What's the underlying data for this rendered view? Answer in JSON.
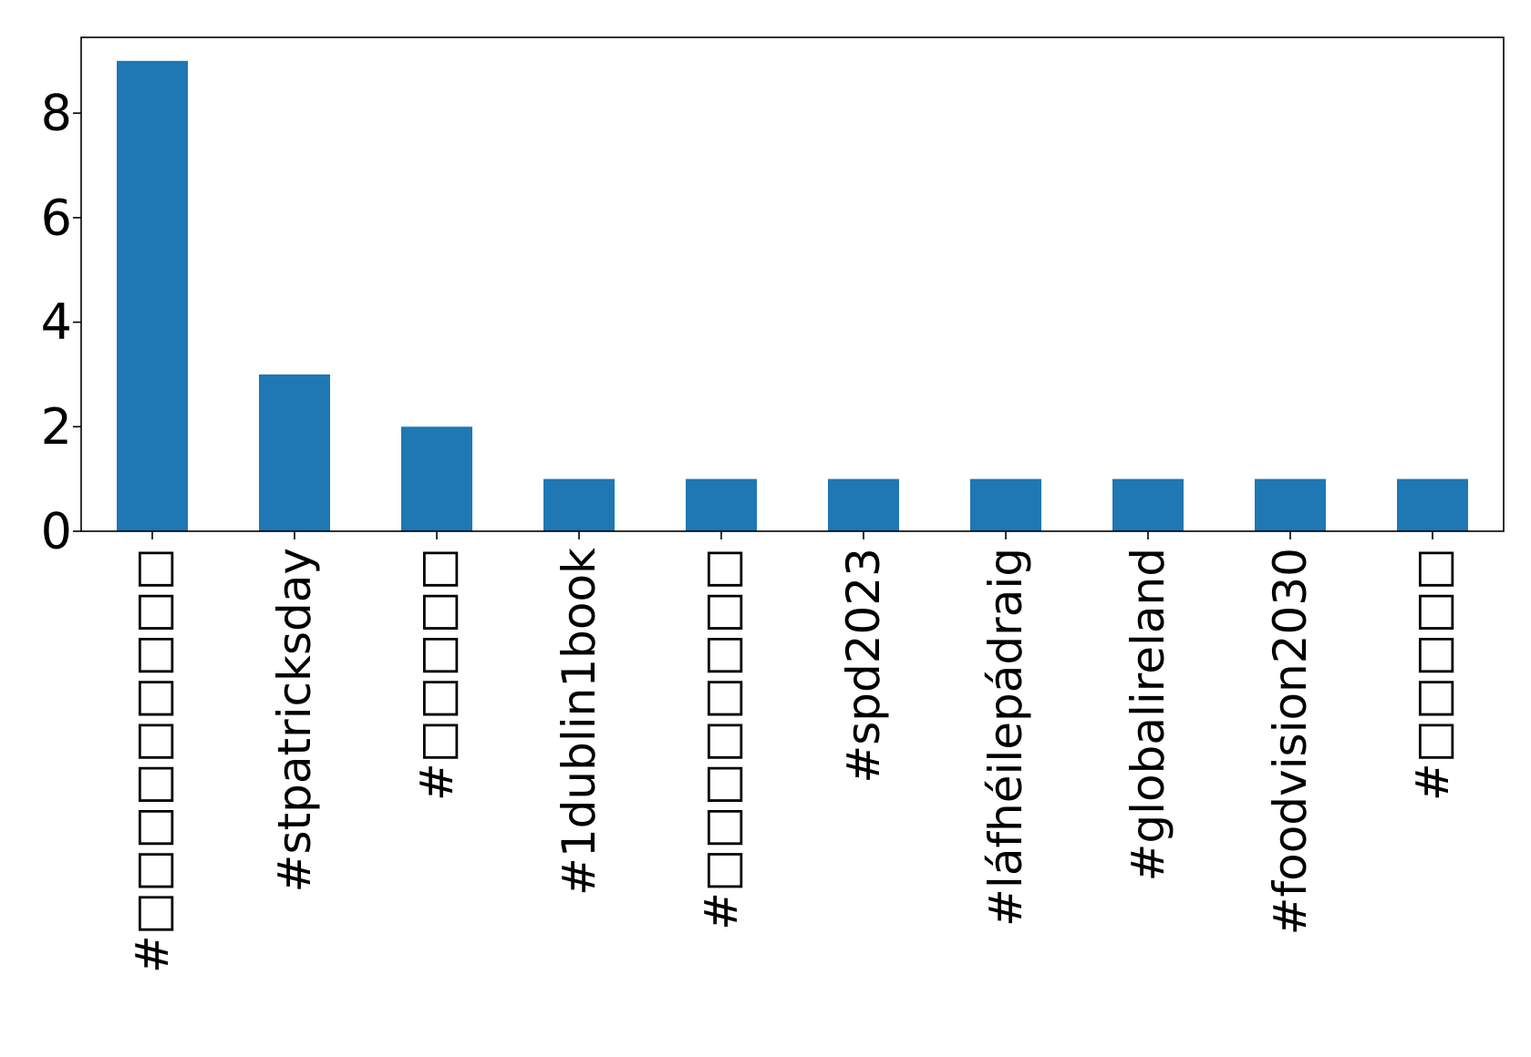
{
  "chart_data": {
    "type": "bar",
    "title": "",
    "xlabel": "",
    "ylabel": "",
    "categories": [
      "#□□□□□□□□□",
      "#stpatricksday",
      "#□□□□□",
      "#1dublin1book",
      "#□□□□□□□□",
      "#spd2023",
      "#láfhéilepádraig",
      "#globalireland",
      "#foodvision2030",
      "#□□□□□"
    ],
    "values": [
      9,
      3,
      2,
      1,
      1,
      1,
      1,
      1,
      1,
      1
    ],
    "ylim": [
      0,
      9.45
    ],
    "yticks": [
      0,
      2,
      4,
      6,
      8
    ],
    "ytick_labels": [
      "0",
      "2",
      "4",
      "6",
      "8"
    ],
    "grid": false,
    "legend": "none",
    "colors": {
      "bar": "#1f77b4",
      "axis": "#000000",
      "background": "#ffffff"
    }
  }
}
